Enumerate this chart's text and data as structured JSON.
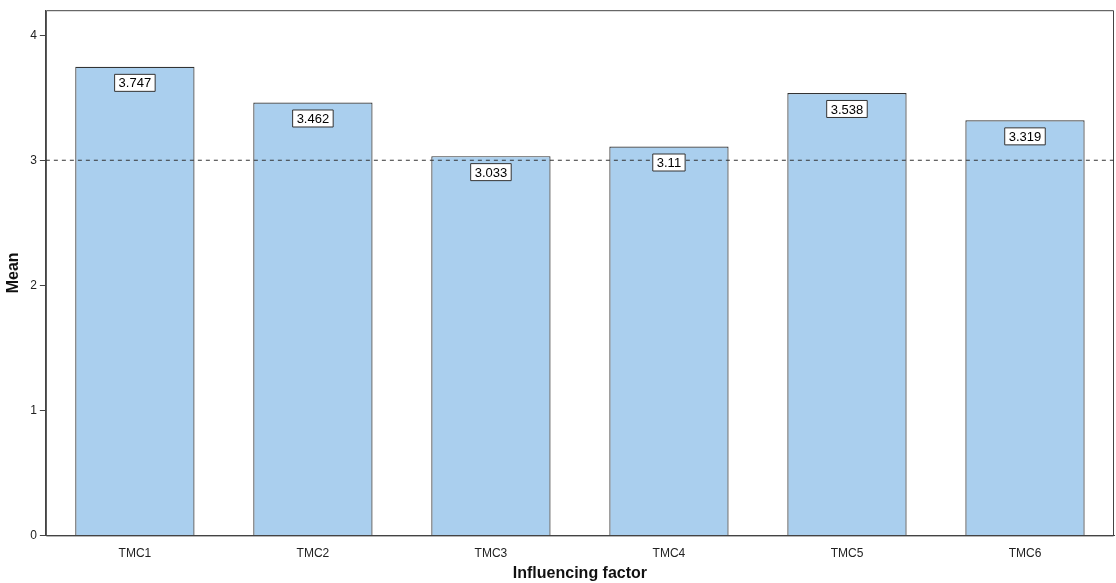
{
  "chart_data": {
    "type": "bar",
    "xlabel": "Influencing factor",
    "ylabel": "Mean",
    "categories": [
      "TMC1",
      "TMC2",
      "TMC3",
      "TMC4",
      "TMC5",
      "TMC6"
    ],
    "values": [
      3.747,
      3.462,
      3.033,
      3.11,
      3.538,
      3.319
    ],
    "color": "#aacfee",
    "ylim": [
      0,
      4.2
    ],
    "yticks": [
      0,
      1,
      2,
      3,
      4
    ],
    "ref_lines": [
      {
        "axis": "y",
        "value": 3,
        "color": "#333333",
        "line_style": "dashed"
      }
    ],
    "data_labels": true,
    "grid": false,
    "legend": false
  }
}
